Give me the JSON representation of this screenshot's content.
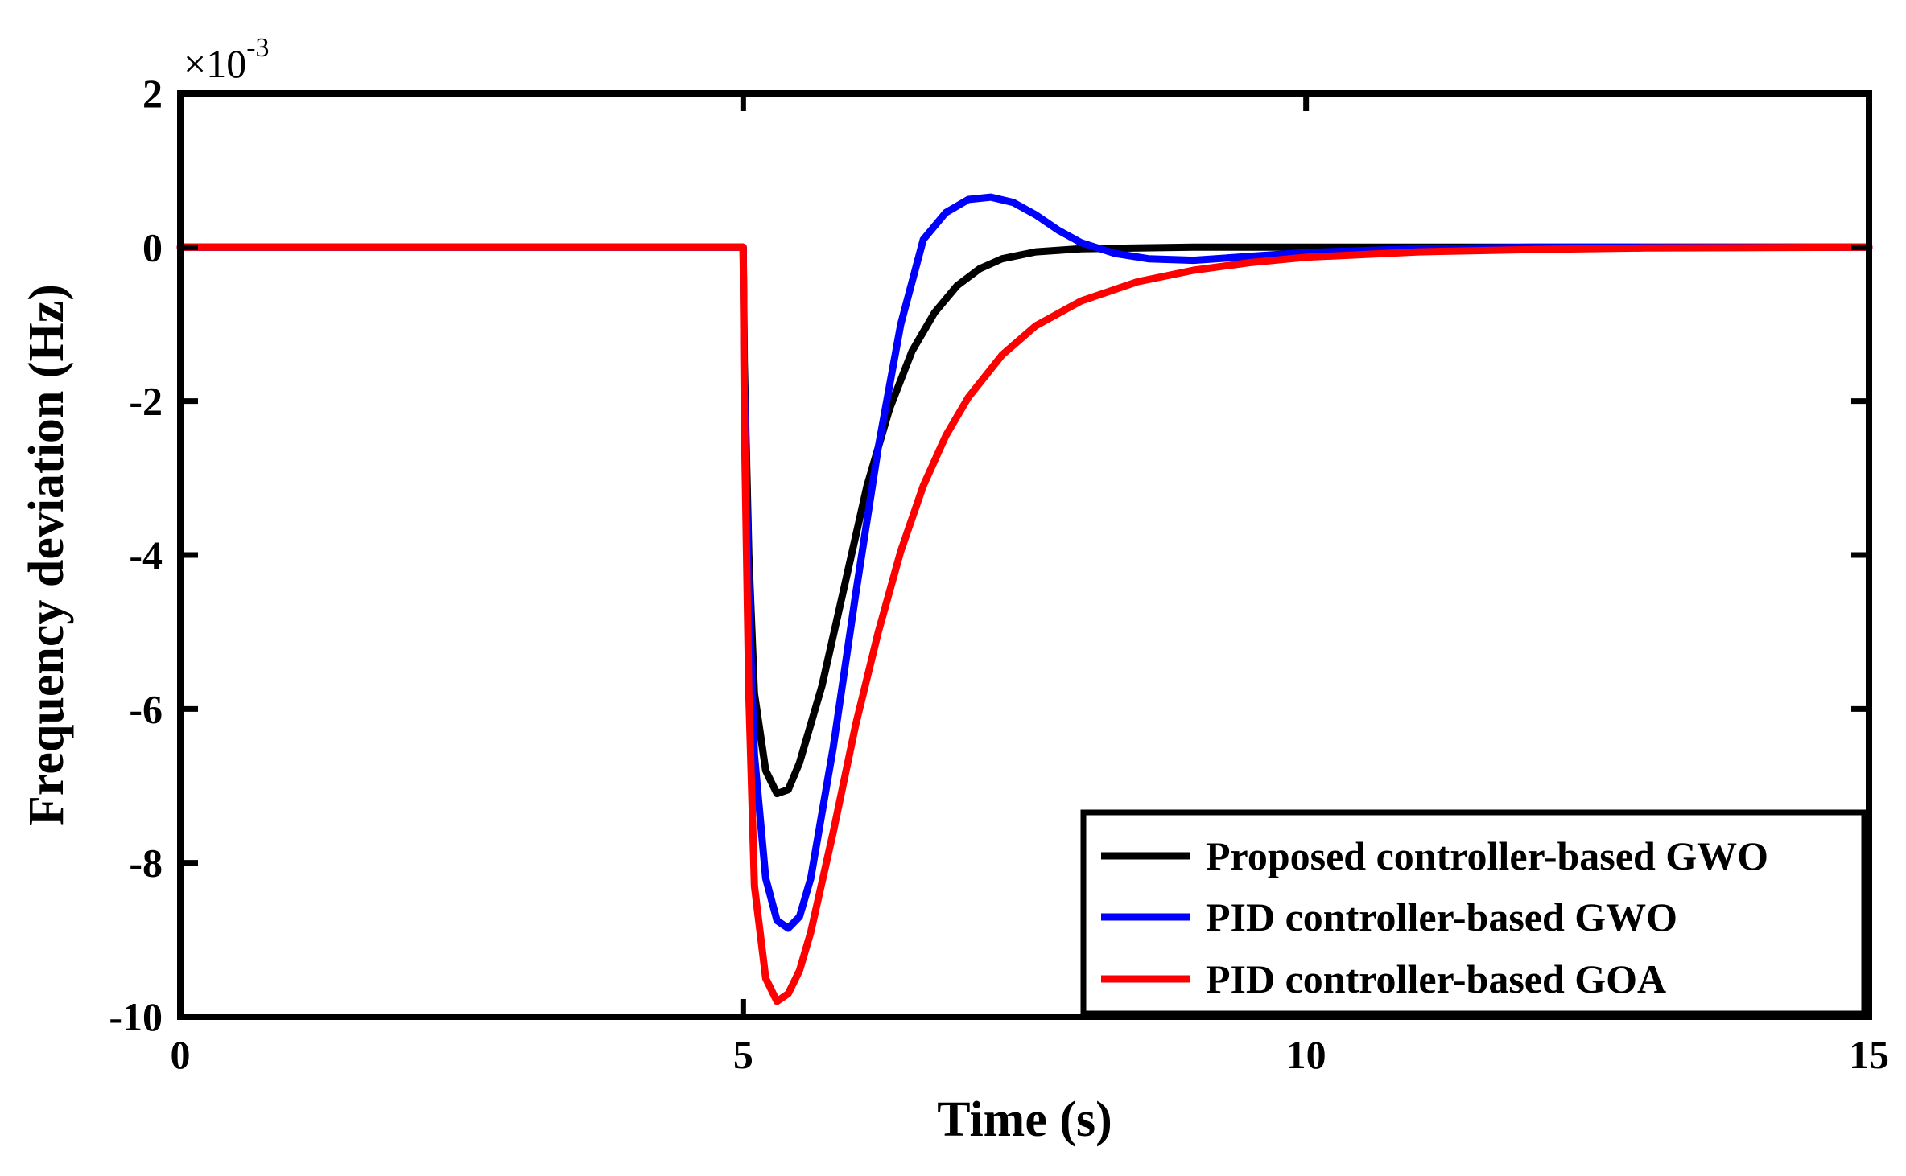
{
  "chart_data": {
    "type": "line",
    "title": "",
    "xlabel": "Time (s)",
    "ylabel": "Frequency deviation (Hz)",
    "y_multiplier_label": "×10",
    "y_multiplier_exponent": "-3",
    "xlim": [
      0,
      15
    ],
    "ylim": [
      -10,
      2
    ],
    "xticks": [
      0,
      5,
      10,
      15
    ],
    "yticks": [
      2,
      0,
      -2,
      -4,
      -6,
      -8,
      -10
    ],
    "xtick_labels": [
      "0",
      "5",
      "10",
      "15"
    ],
    "ytick_labels": [
      "2",
      "0",
      "-2",
      "-4",
      "-6",
      "-8",
      "-10"
    ],
    "grid": false,
    "legend_position": "bottom-right",
    "series": [
      {
        "name": "Proposed controller-based GWO",
        "color": "#000000",
        "x": [
          0,
          5,
          5.01,
          5.05,
          5.1,
          5.2,
          5.3,
          5.4,
          5.5,
          5.7,
          5.9,
          6.1,
          6.3,
          6.5,
          6.7,
          6.9,
          7.1,
          7.3,
          7.6,
          8.0,
          8.5,
          9.0,
          10,
          12,
          15
        ],
        "y": [
          0,
          0,
          -1.5,
          -4.0,
          -5.8,
          -6.8,
          -7.1,
          -7.05,
          -6.7,
          -5.7,
          -4.4,
          -3.1,
          -2.1,
          -1.35,
          -0.85,
          -0.5,
          -0.28,
          -0.15,
          -0.06,
          -0.02,
          -0.01,
          0,
          0,
          0,
          0
        ]
      },
      {
        "name": "PID controller-based GWO",
        "color": "#0000ff",
        "x": [
          0,
          5,
          5.01,
          5.05,
          5.1,
          5.2,
          5.3,
          5.4,
          5.5,
          5.6,
          5.8,
          6.0,
          6.2,
          6.4,
          6.6,
          6.8,
          7.0,
          7.2,
          7.4,
          7.6,
          7.8,
          8.0,
          8.3,
          8.6,
          9.0,
          9.5,
          10.0,
          11.0,
          12.0,
          15
        ],
        "y": [
          0,
          0,
          -1.8,
          -4.5,
          -6.6,
          -8.2,
          -8.75,
          -8.85,
          -8.7,
          -8.2,
          -6.5,
          -4.5,
          -2.6,
          -1.0,
          0.1,
          0.45,
          0.62,
          0.65,
          0.58,
          0.42,
          0.22,
          0.06,
          -0.08,
          -0.15,
          -0.17,
          -0.12,
          -0.07,
          -0.02,
          0,
          0
        ]
      },
      {
        "name": "PID controller-based GOA",
        "color": "#ff0000",
        "x": [
          0,
          5,
          5.01,
          5.05,
          5.1,
          5.2,
          5.3,
          5.4,
          5.5,
          5.6,
          5.8,
          6.0,
          6.2,
          6.4,
          6.6,
          6.8,
          7.0,
          7.3,
          7.6,
          8.0,
          8.5,
          9.0,
          9.5,
          10.0,
          11.0,
          12.0,
          13.0,
          15
        ],
        "y": [
          0,
          0,
          -2.2,
          -5.8,
          -8.3,
          -9.5,
          -9.8,
          -9.7,
          -9.4,
          -8.9,
          -7.6,
          -6.2,
          -5.0,
          -3.95,
          -3.1,
          -2.45,
          -1.95,
          -1.4,
          -1.02,
          -0.7,
          -0.45,
          -0.3,
          -0.2,
          -0.13,
          -0.06,
          -0.03,
          -0.01,
          0
        ]
      }
    ]
  }
}
